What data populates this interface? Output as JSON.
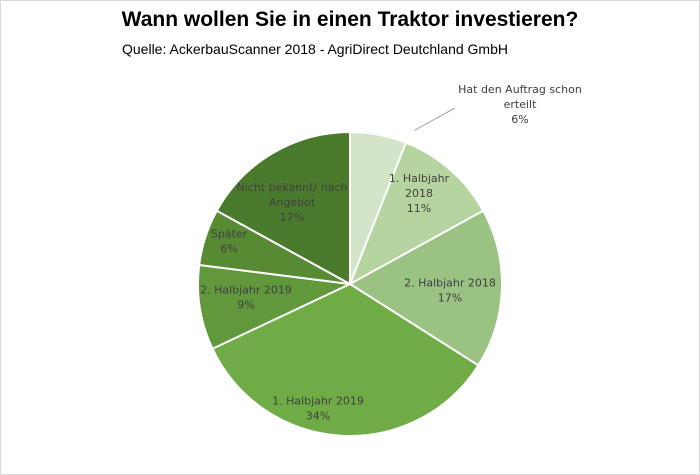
{
  "chart_data": {
    "type": "pie",
    "title": "Wann wollen Sie in einen Traktor investieren?",
    "subtitle": "Quelle: AckerbauScanner 2018 - AgriDirect Deutchland GmbH",
    "start_angle": "top (12 o'clock), clockwise",
    "slices": [
      {
        "label": "Hat den Auftrag schon erteilt",
        "label_lines": [
          "Hat den Auftrag schon",
          "erteilt"
        ],
        "value": 6,
        "value_label": "6%",
        "color": "#d4e4c8"
      },
      {
        "label": "1. Halbjahr 2018",
        "label_lines": [
          "1. Halbjahr",
          "2018"
        ],
        "value": 11,
        "value_label": "11%",
        "color": "#b6d4a0"
      },
      {
        "label": "2. Halbjahr 2018",
        "label_lines": [
          "2. Halbjahr 2018"
        ],
        "value": 17,
        "value_label": "17%",
        "color": "#9ac283"
      },
      {
        "label": "1. Halbjahr 2019",
        "label_lines": [
          "1. Halbjahr 2019"
        ],
        "value": 34,
        "value_label": "34%",
        "color": "#6fac46"
      },
      {
        "label": "2. Halbjahr 2019",
        "label_lines": [
          "2. Halbjahr 2019"
        ],
        "value": 9,
        "value_label": "9%",
        "color": "#61983b"
      },
      {
        "label": "Später",
        "label_lines": [
          "Später"
        ],
        "value": 6,
        "value_label": "6%",
        "color": "#568a33"
      },
      {
        "label": "Nicht bekannt/ nach Angebot",
        "label_lines": [
          "Nicht bekannt/ nach",
          "Angebot"
        ],
        "value": 17,
        "value_label": "17%",
        "color": "#4a7a2b"
      }
    ]
  }
}
